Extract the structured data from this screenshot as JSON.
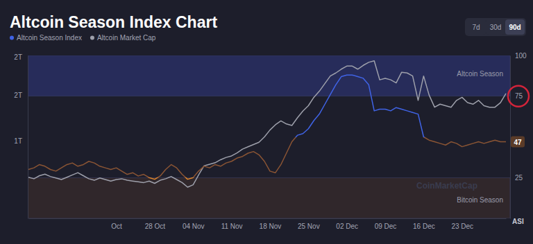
{
  "chart_data": {
    "type": "line",
    "title": "Altcoin Season Index Chart",
    "legend": "top-left",
    "grid": false,
    "range_buttons": [
      "7d",
      "30d",
      "90d"
    ],
    "active_button": "90d",
    "categories": [
      null,
      null,
      null,
      null,
      null,
      null,
      null,
      null,
      null,
      null,
      null,
      null,
      null,
      null,
      null,
      null,
      "Oct",
      null,
      null,
      null,
      null,
      null,
      null,
      "28 Oct",
      null,
      null,
      null,
      null,
      null,
      null,
      "04 Nov",
      null,
      null,
      null,
      null,
      null,
      null,
      "11 Nov",
      null,
      null,
      null,
      null,
      null,
      null,
      "18 Nov",
      null,
      null,
      null,
      null,
      null,
      null,
      "25 Nov",
      null,
      null,
      null,
      null,
      null,
      null,
      "02 Dec",
      null,
      null,
      null,
      null,
      null,
      null,
      "09 Dec",
      null,
      null,
      null,
      null,
      null,
      null,
      "16 Dec",
      null,
      null,
      null,
      null,
      null,
      null,
      "23 Dec",
      null,
      null,
      null,
      null,
      null,
      null,
      null,
      null
    ],
    "series": [
      {
        "name": "Altcoin Season Index",
        "color": "#3f63e6",
        "axis": "y",
        "values": [
          30,
          31,
          33,
          32,
          30,
          29,
          31,
          33,
          34,
          32,
          33,
          35,
          34,
          32,
          31,
          30,
          31,
          29,
          27,
          28,
          26,
          27,
          25,
          24,
          26,
          30,
          33,
          31,
          27,
          24,
          25,
          29,
          32,
          31,
          33,
          32,
          34,
          35,
          37,
          38,
          40,
          41,
          39,
          35,
          29,
          28,
          33,
          40,
          47,
          51,
          52,
          55,
          60,
          64,
          70,
          76,
          82,
          87,
          88,
          88,
          87,
          86,
          82,
          66,
          67,
          67,
          66,
          68,
          67,
          66,
          65,
          64,
          50,
          48,
          47,
          46,
          45,
          47,
          46,
          44,
          45,
          46,
          47,
          46,
          47,
          48,
          47,
          47
        ]
      },
      {
        "name": "Altcoin Market Cap",
        "color": "#9ea0ab",
        "axis": "y2",
        "values": [
          0.82,
          0.8,
          0.84,
          0.86,
          0.83,
          0.81,
          0.79,
          0.82,
          0.85,
          0.88,
          0.84,
          0.8,
          0.78,
          0.81,
          0.79,
          0.77,
          0.79,
          0.8,
          0.78,
          0.77,
          0.76,
          0.75,
          0.77,
          0.74,
          0.78,
          0.8,
          0.83,
          0.79,
          0.75,
          0.69,
          0.72,
          0.85,
          0.97,
          0.99,
          1.01,
          1.05,
          1.08,
          1.1,
          1.14,
          1.19,
          1.22,
          1.25,
          1.28,
          1.35,
          1.44,
          1.51,
          1.56,
          1.52,
          1.5,
          1.6,
          1.69,
          1.76,
          1.87,
          1.95,
          2.05,
          2.15,
          2.19,
          2.24,
          2.28,
          2.28,
          2.24,
          2.29,
          2.33,
          2.35,
          2.1,
          2.12,
          2.1,
          2.06,
          2.2,
          2.19,
          2.15,
          1.83,
          2.15,
          1.9,
          1.74,
          1.78,
          1.76,
          1.74,
          1.83,
          1.87,
          1.8,
          1.78,
          1.83,
          1.76,
          1.74,
          1.74,
          1.8,
          1.92
        ]
      }
    ],
    "ylim": [
      0,
      100
    ],
    "yticks": [
      25,
      75,
      100
    ],
    "y_label": "ASI",
    "y2lim": [
      0.28,
      2.42
    ],
    "y2ticks": [
      {
        "value": 1.3,
        "label": "1T"
      },
      {
        "value": 1.9,
        "label": "2T"
      },
      {
        "value": 2.4,
        "label": "2T"
      }
    ],
    "bands": [
      {
        "label": "Altcoin Season",
        "range": [
          75,
          100
        ],
        "color": "#272c5a"
      },
      {
        "label": "Bitcoin Season",
        "range": [
          0,
          25
        ],
        "color": "#30272b"
      }
    ],
    "annotations": [
      {
        "type": "badge",
        "value": 47,
        "color": "#5a3b28"
      },
      {
        "type": "circle",
        "value": 75,
        "color": "#d3243a"
      }
    ],
    "watermark": "CoinMarketCap"
  }
}
